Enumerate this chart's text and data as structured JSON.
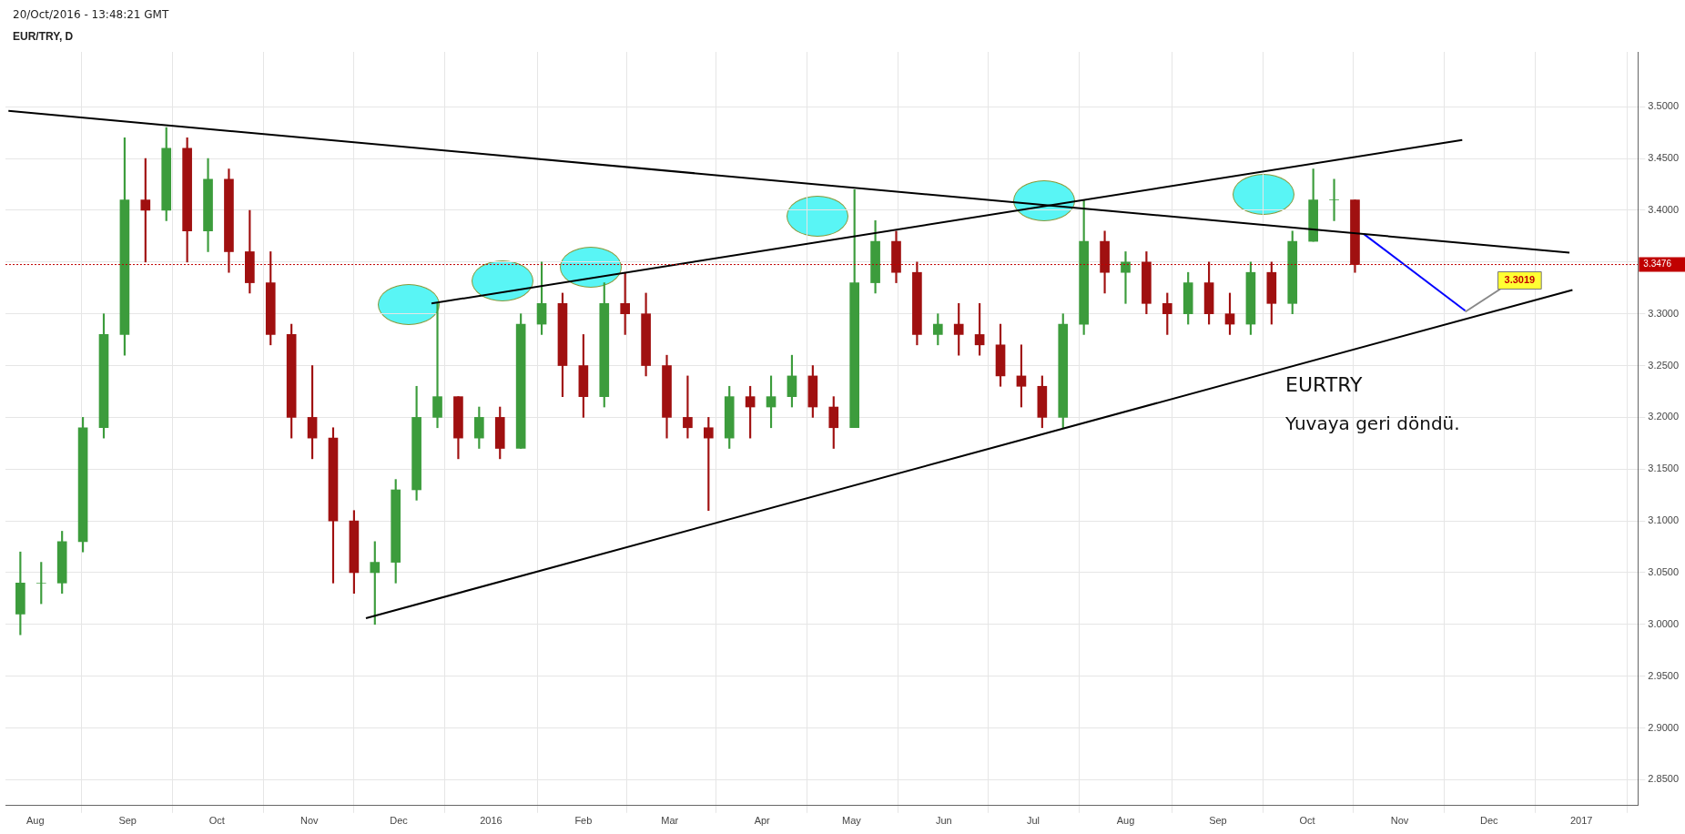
{
  "chart_data": {
    "type": "candlestick",
    "title": "EUR/TRY, D",
    "annotations": [
      "20/Oct/2016 - 13:48:21 GMT",
      "EURTRY",
      "Yuvaya geri döndü.",
      {
        "text": "3.3019",
        "x": "2016-11-23",
        "y": 3.3019
      }
    ],
    "colors": [
      "#3c9c3c",
      "#3c9c3c",
      "#3c9c3c",
      "#3c9c3c",
      "#3c9c3c",
      "#3c9c3c",
      "#a01010",
      "#3c9c3c",
      "#a01010",
      "#3c9c3c",
      "#a01010",
      "#a01010",
      "#a01010",
      "#a01010",
      "#a01010",
      "#a01010",
      "#a01010",
      "#3c9c3c",
      "#3c9c3c",
      "#3c9c3c",
      "#3c9c3c",
      "#a01010",
      "#3c9c3c",
      "#a01010",
      "#3c9c3c",
      "#3c9c3c",
      "#a01010",
      "#a01010",
      "#3c9c3c",
      "#a01010",
      "#a01010",
      "#a01010",
      "#a01010",
      "#a01010",
      "#3c9c3c",
      "#a01010",
      "#3c9c3c",
      "#3c9c3c",
      "#a01010",
      "#a01010",
      "#3c9c3c",
      "#3c9c3c",
      "#a01010",
      "#a01010",
      "#3c9c3c",
      "#a01010",
      "#a01010",
      "#a01010",
      "#a01010",
      "#a01010",
      "#3c9c3c",
      "#3c9c3c",
      "#a01010",
      "#3c9c3c",
      "#a01010",
      "#a01010",
      "#3c9c3c",
      "#a01010",
      "#a01010",
      "#3c9c3c",
      "#a01010",
      "#3c9c3c",
      "#3c9c3c",
      "#3c9c3c",
      "#a01010"
    ],
    "x": [
      "2015-07-27",
      "2015-08-03",
      "2015-08-10",
      "2015-08-17",
      "2015-08-24",
      "2015-08-31",
      "2015-09-07",
      "2015-09-14",
      "2015-09-21",
      "2015-09-28",
      "2015-10-05",
      "2015-10-12",
      "2015-10-19",
      "2015-10-26",
      "2015-11-02",
      "2015-11-09",
      "2015-11-16",
      "2015-11-23",
      "2015-11-30",
      "2015-12-07",
      "2015-12-14",
      "2015-12-21",
      "2015-12-28",
      "2016-01-04",
      "2016-01-11",
      "2016-01-18",
      "2016-01-25",
      "2016-02-01",
      "2016-02-08",
      "2016-02-15",
      "2016-02-22",
      "2016-02-29",
      "2016-03-07",
      "2016-03-14",
      "2016-03-21",
      "2016-03-28",
      "2016-04-04",
      "2016-04-11",
      "2016-04-18",
      "2016-04-25",
      "2016-05-02",
      "2016-05-09",
      "2016-05-16",
      "2016-05-23",
      "2016-05-30",
      "2016-06-06",
      "2016-06-13",
      "2016-06-20",
      "2016-06-27",
      "2016-07-04",
      "2016-07-11",
      "2016-07-18",
      "2016-07-25",
      "2016-08-01",
      "2016-08-08",
      "2016-08-15",
      "2016-08-22",
      "2016-08-29",
      "2016-09-05",
      "2016-09-12",
      "2016-09-19",
      "2016-09-26",
      "2016-10-03",
      "2016-10-10",
      "2016-10-17"
    ],
    "ohlc": [
      [
        3.01,
        3.07,
        2.99,
        3.04
      ],
      [
        3.04,
        3.06,
        3.02,
        3.04
      ],
      [
        3.04,
        3.09,
        3.03,
        3.08
      ],
      [
        3.08,
        3.2,
        3.07,
        3.19
      ],
      [
        3.19,
        3.3,
        3.18,
        3.28
      ],
      [
        3.28,
        3.47,
        3.26,
        3.41
      ],
      [
        3.41,
        3.45,
        3.35,
        3.4
      ],
      [
        3.4,
        3.48,
        3.39,
        3.46
      ],
      [
        3.46,
        3.47,
        3.35,
        3.38
      ],
      [
        3.38,
        3.45,
        3.36,
        3.43
      ],
      [
        3.43,
        3.44,
        3.34,
        3.36
      ],
      [
        3.36,
        3.4,
        3.32,
        3.33
      ],
      [
        3.33,
        3.36,
        3.27,
        3.28
      ],
      [
        3.28,
        3.29,
        3.18,
        3.2
      ],
      [
        3.2,
        3.25,
        3.16,
        3.18
      ],
      [
        3.18,
        3.19,
        3.04,
        3.1
      ],
      [
        3.1,
        3.11,
        3.03,
        3.05
      ],
      [
        3.05,
        3.08,
        3.0,
        3.06
      ],
      [
        3.06,
        3.14,
        3.04,
        3.13
      ],
      [
        3.13,
        3.23,
        3.12,
        3.2
      ],
      [
        3.2,
        3.31,
        3.19,
        3.22
      ],
      [
        3.22,
        3.22,
        3.16,
        3.18
      ],
      [
        3.18,
        3.21,
        3.17,
        3.2
      ],
      [
        3.2,
        3.21,
        3.16,
        3.17
      ],
      [
        3.17,
        3.3,
        3.17,
        3.29
      ],
      [
        3.29,
        3.35,
        3.28,
        3.31
      ],
      [
        3.31,
        3.32,
        3.22,
        3.25
      ],
      [
        3.25,
        3.28,
        3.2,
        3.22
      ],
      [
        3.22,
        3.33,
        3.21,
        3.31
      ],
      [
        3.31,
        3.34,
        3.28,
        3.3
      ],
      [
        3.3,
        3.32,
        3.24,
        3.25
      ],
      [
        3.25,
        3.26,
        3.18,
        3.2
      ],
      [
        3.2,
        3.24,
        3.18,
        3.19
      ],
      [
        3.19,
        3.2,
        3.11,
        3.18
      ],
      [
        3.18,
        3.23,
        3.17,
        3.22
      ],
      [
        3.22,
        3.23,
        3.18,
        3.21
      ],
      [
        3.21,
        3.24,
        3.19,
        3.22
      ],
      [
        3.22,
        3.26,
        3.21,
        3.24
      ],
      [
        3.24,
        3.25,
        3.2,
        3.21
      ],
      [
        3.21,
        3.22,
        3.17,
        3.19
      ],
      [
        3.19,
        3.42,
        3.19,
        3.33
      ],
      [
        3.33,
        3.39,
        3.32,
        3.37
      ],
      [
        3.37,
        3.38,
        3.33,
        3.34
      ],
      [
        3.34,
        3.35,
        3.27,
        3.28
      ],
      [
        3.28,
        3.3,
        3.27,
        3.29
      ],
      [
        3.29,
        3.31,
        3.26,
        3.28
      ],
      [
        3.28,
        3.31,
        3.26,
        3.27
      ],
      [
        3.27,
        3.29,
        3.23,
        3.24
      ],
      [
        3.24,
        3.27,
        3.21,
        3.23
      ],
      [
        3.23,
        3.24,
        3.19,
        3.2
      ],
      [
        3.2,
        3.3,
        3.19,
        3.29
      ],
      [
        3.29,
        3.41,
        3.28,
        3.37
      ],
      [
        3.37,
        3.38,
        3.32,
        3.34
      ],
      [
        3.34,
        3.36,
        3.31,
        3.35
      ],
      [
        3.35,
        3.36,
        3.3,
        3.31
      ],
      [
        3.31,
        3.32,
        3.28,
        3.3
      ],
      [
        3.3,
        3.34,
        3.29,
        3.33
      ],
      [
        3.33,
        3.35,
        3.29,
        3.3
      ],
      [
        3.3,
        3.32,
        3.28,
        3.29
      ],
      [
        3.29,
        3.35,
        3.28,
        3.34
      ],
      [
        3.34,
        3.35,
        3.29,
        3.31
      ],
      [
        3.31,
        3.38,
        3.3,
        3.37
      ],
      [
        3.37,
        3.44,
        3.37,
        3.41
      ],
      [
        3.41,
        3.43,
        3.39,
        3.41
      ],
      [
        3.41,
        3.41,
        3.34,
        3.3476
      ]
    ],
    "series": [
      {
        "type": "line",
        "color": "#000000",
        "x": [
          "2015-07-23",
          "2016-12-28"
        ],
        "values": [
          3.496,
          3.359
        ]
      },
      {
        "type": "line",
        "color": "#000000",
        "x": [
          "2015-11-20",
          "2016-12-29"
        ],
        "values": [
          3.006,
          3.323
        ]
      },
      {
        "type": "line",
        "color": "#000000",
        "x": [
          "2015-12-12",
          "2016-11-22"
        ],
        "values": [
          3.31,
          3.468
        ]
      },
      {
        "type": "line",
        "color": "#0000ff",
        "x": [
          "2016-10-20",
          "2016-11-23"
        ],
        "values": [
          3.377,
          3.303
        ]
      }
    ],
    "ref_lines": [
      {
        "axis": "y",
        "value": 3.3476,
        "label": "3.3476",
        "color": "#c00000",
        "line_style": "dotted"
      }
    ],
    "grid": true,
    "xlim": [
      "2015-07-22",
      "2017-01-20"
    ],
    "xticks": [
      {
        "value": "2015-08-01",
        "label": "Aug"
      },
      {
        "value": "2015-09-01",
        "label": "Sep"
      },
      {
        "value": "2015-10-01",
        "label": "Oct"
      },
      {
        "value": "2015-11-01",
        "label": "Nov"
      },
      {
        "value": "2015-12-01",
        "label": "Dec"
      },
      {
        "value": "2016-01-01",
        "label": "2016"
      },
      {
        "value": "2016-02-01",
        "label": "Feb"
      },
      {
        "value": "2016-03-01",
        "label": "Mar"
      },
      {
        "value": "2016-04-01",
        "label": "Apr"
      },
      {
        "value": "2016-05-01",
        "label": "May"
      },
      {
        "value": "2016-06-01",
        "label": "Jun"
      },
      {
        "value": "2016-07-01",
        "label": "Jul"
      },
      {
        "value": "2016-08-01",
        "label": "Aug"
      },
      {
        "value": "2016-09-01",
        "label": "Sep"
      },
      {
        "value": "2016-10-01",
        "label": "Oct"
      },
      {
        "value": "2016-11-01",
        "label": "Nov"
      },
      {
        "value": "2016-12-01",
        "label": "Dec"
      },
      {
        "value": "2017-01-01",
        "label": "2017"
      }
    ],
    "ylim": [
      2.825,
      3.553
    ],
    "yticks": [
      {
        "value": 2.85,
        "label": "2.8500"
      },
      {
        "value": 2.9,
        "label": "2.9000"
      },
      {
        "value": 2.95,
        "label": "2.9500"
      },
      {
        "value": 3.0,
        "label": "3.0000"
      },
      {
        "value": 3.05,
        "label": "3.0500"
      },
      {
        "value": 3.1,
        "label": "3.1000"
      },
      {
        "value": 3.15,
        "label": "3.1500"
      },
      {
        "value": 3.2,
        "label": "3.2000"
      },
      {
        "value": 3.25,
        "label": "3.2500"
      },
      {
        "value": 3.3,
        "label": "3.3000"
      },
      {
        "value": 3.35,
        "label": null
      },
      {
        "value": 3.4,
        "label": "3.4000"
      },
      {
        "value": 3.45,
        "label": "3.4500"
      },
      {
        "value": 3.5,
        "label": "3.5000"
      }
    ]
  }
}
